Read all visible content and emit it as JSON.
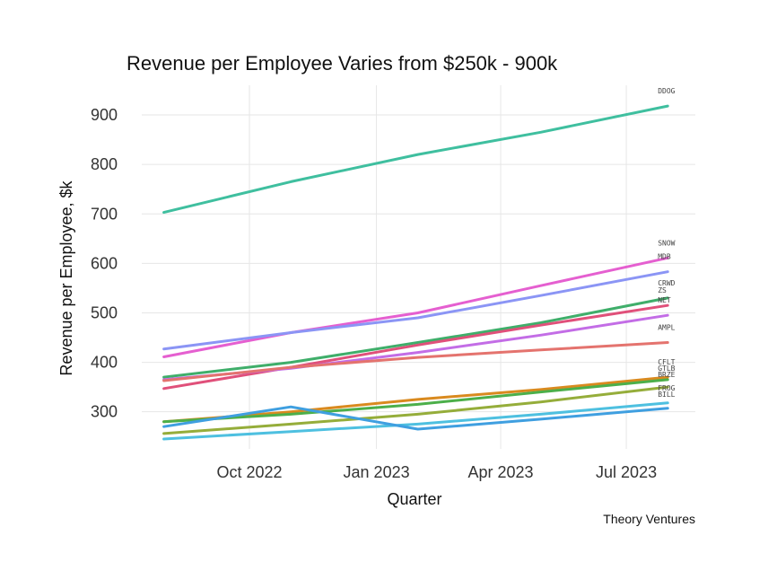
{
  "chart_data": {
    "type": "line",
    "title": "Revenue per Employee Varies from $250k - 900k",
    "xlabel": "Quarter",
    "ylabel": "Revenue per Employee, $k",
    "caption": "Theory Ventures",
    "x": [
      "2022-07-31",
      "2022-10-31",
      "2023-01-31",
      "2023-04-30",
      "2023-07-31"
    ],
    "xlim": [
      "2022-07-15",
      "2023-08-20"
    ],
    "x_ticks": [
      {
        "date": "2022-10-01",
        "label": "Oct 2022"
      },
      {
        "date": "2023-01-01",
        "label": "Jan 2023"
      },
      {
        "date": "2023-04-01",
        "label": "Apr 2023"
      },
      {
        "date": "2023-07-01",
        "label": "Jul 2023"
      }
    ],
    "ylim": [
      225,
      960
    ],
    "y_ticks": [
      300,
      400,
      500,
      600,
      700,
      800,
      900
    ],
    "grid": true,
    "legend": "direct labels at line ends",
    "series": [
      {
        "name": "DDOG",
        "color": "#3fbf9f",
        "values": [
          703,
          765,
          820,
          865,
          918
        ]
      },
      {
        "name": "SNOW",
        "color": "#e55fd0",
        "values": [
          411,
          460,
          500,
          555,
          611
        ]
      },
      {
        "name": "MDB",
        "color": "#8b95f5",
        "values": [
          427,
          460,
          490,
          535,
          583
        ]
      },
      {
        "name": "CRWD",
        "color": "#3fae6a",
        "values": [
          370,
          400,
          440,
          480,
          530
        ]
      },
      {
        "name": "ZS",
        "color": "#e0507a",
        "values": [
          347,
          390,
          435,
          475,
          515
        ]
      },
      {
        "name": "NET",
        "color": "#c36de6",
        "values": [
          365,
          388,
          420,
          455,
          495
        ]
      },
      {
        "name": "AMPL",
        "color": "#e4736e",
        "values": [
          363,
          390,
          410,
          425,
          440
        ]
      },
      {
        "name": "CFLT",
        "color": "#d98a1f",
        "values": [
          280,
          300,
          325,
          345,
          370
        ]
      },
      {
        "name": "GTLB",
        "color": "#4caf4a",
        "values": [
          280,
          295,
          315,
          340,
          365
        ]
      },
      {
        "name": "BRZE",
        "color": "#95ad3a",
        "values": [
          256,
          275,
          295,
          320,
          350
        ]
      },
      {
        "name": "FROG",
        "color": "#4ec0e0",
        "values": [
          245,
          260,
          275,
          295,
          318
        ]
      },
      {
        "name": "BILL",
        "color": "#3f9fe0",
        "values": [
          270,
          310,
          265,
          285,
          307
        ]
      }
    ],
    "end_labels": [
      "DDOG",
      "SNOW",
      "MDB",
      "CRWD",
      "ZS",
      "NET",
      "AMPL",
      "CFLT",
      "GTLB",
      "BRZE",
      "FROG",
      "BILL"
    ]
  }
}
